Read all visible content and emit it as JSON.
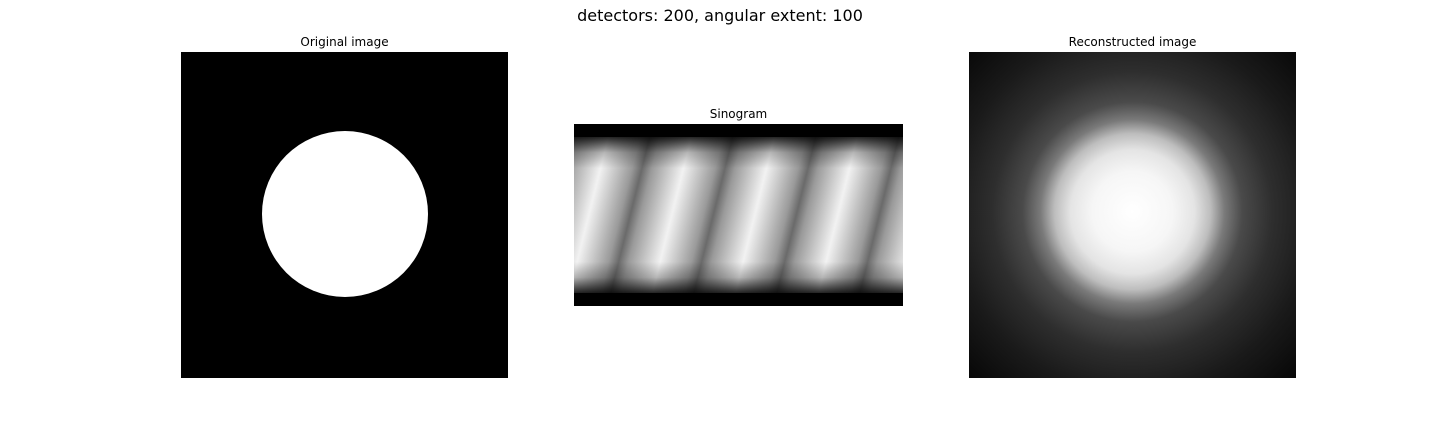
{
  "figure": {
    "suptitle": "detectors: 200, angular extent: 100"
  },
  "panels": [
    {
      "title": "Original image"
    },
    {
      "title": "Sinogram"
    },
    {
      "title": "Reconstructed image"
    }
  ],
  "colors": {
    "background": "#ffffff",
    "image_black": "#000000",
    "image_white": "#ffffff"
  }
}
